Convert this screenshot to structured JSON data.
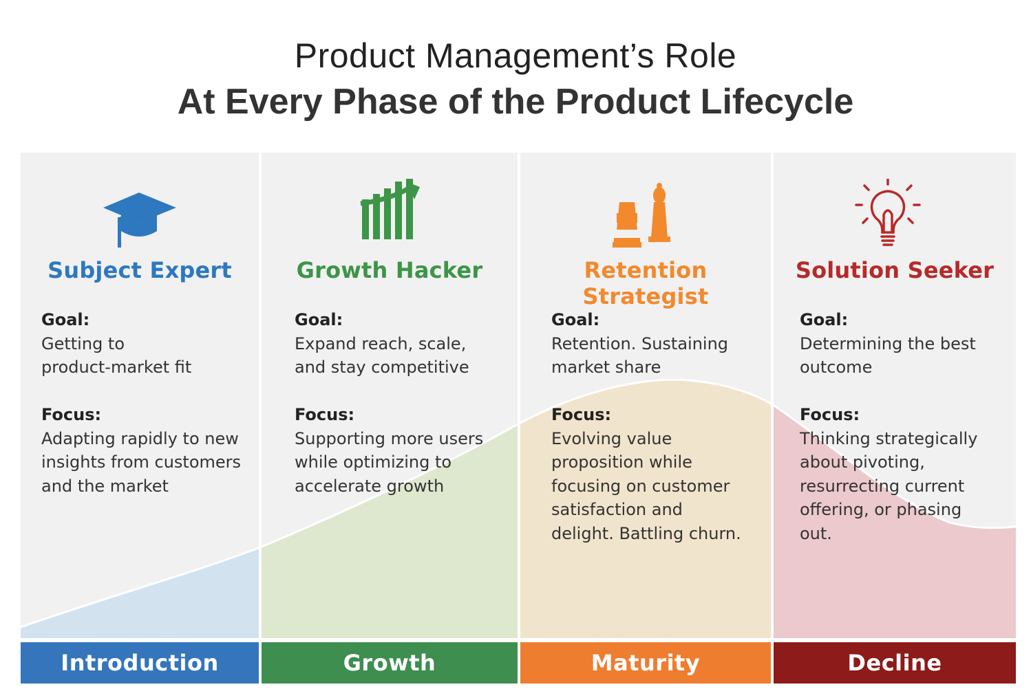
{
  "header": {
    "title_line1": "Product Management’s Role",
    "title_line2": "At Every Phase of the Product Lifecycle"
  },
  "colors": {
    "panel_bg": "#f1f1f1",
    "introduction": "#3475bb",
    "growth": "#3e8e4f",
    "maturity": "#ee7d30",
    "decline": "#8d1b19",
    "role_introduction": "#2e78c0",
    "role_growth": "#3d9548",
    "role_maturity": "#f2892d",
    "role_decline": "#b72a2a",
    "curve_introduction": "#d2e3ef",
    "curve_growth": "#dee8cf",
    "curve_maturity": "#f1e4cc",
    "curve_decline": "#ecc9cc"
  },
  "phases": [
    {
      "key": "introduction",
      "icon": "graduation-cap-icon",
      "role": "Subject Expert",
      "goal_label": "Goal:",
      "goal_lines": [
        "Getting to",
        "product-market fit"
      ],
      "focus_label": "Focus:",
      "focus_lines": [
        "Adapting rapidly to new",
        "insights from customers",
        "and the market"
      ],
      "phase_label": "Introduction"
    },
    {
      "key": "growth",
      "icon": "growth-chart-icon",
      "role": "Growth Hacker",
      "goal_label": "Goal:",
      "goal_lines": [
        "Expand reach, scale,",
        "and stay competitive"
      ],
      "focus_label": "Focus:",
      "focus_lines": [
        "Supporting more users",
        "while optimizing to",
        "accelerate growth"
      ],
      "phase_label": "Growth"
    },
    {
      "key": "maturity",
      "icon": "chess-pieces-icon",
      "role": "Retention Strategist",
      "goal_label": "Goal:",
      "goal_lines": [
        "Retention. Sustaining",
        "market share"
      ],
      "focus_label": "Focus:",
      "focus_lines": [
        "Evolving value",
        "proposition while",
        "focusing on customer",
        "satisfaction and",
        "delight. Battling churn."
      ],
      "phase_label": "Maturity"
    },
    {
      "key": "decline",
      "icon": "lightbulb-icon",
      "role": "Solution Seeker",
      "goal_label": "Goal:",
      "goal_lines": [
        "Determining the best",
        "outcome"
      ],
      "focus_label": "Focus:",
      "focus_lines": [
        "Thinking strategically",
        "about pivoting,",
        "resurrecting current",
        "offering, or phasing",
        "out."
      ],
      "phase_label": "Decline"
    }
  ]
}
